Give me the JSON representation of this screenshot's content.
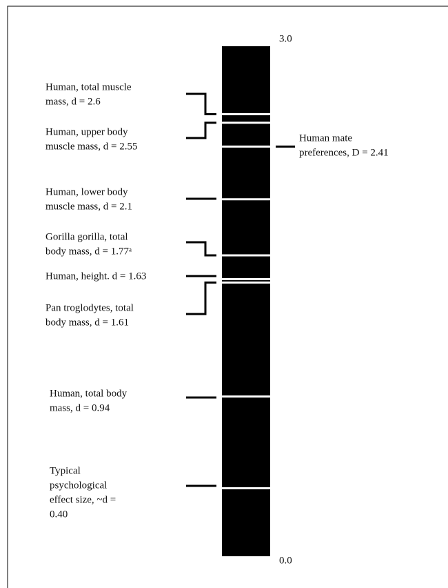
{
  "chart_data": {
    "type": "scale",
    "ylim": [
      0,
      3
    ],
    "yticks": [
      {
        "value": 3,
        "label": "3.0"
      },
      {
        "value": 0,
        "label": "0.0"
      }
    ],
    "color": "#000000",
    "markers": [
      {
        "lines": [
          "Human, total muscle",
          "mass, d = 2.6"
        ],
        "value": 2.6,
        "side": "left"
      },
      {
        "lines": [
          "Human, upper body",
          "muscle mass, d = 2.55"
        ],
        "value": 2.55,
        "side": "left"
      },
      {
        "lines": [
          "Human mate",
          "preferences, D = 2.41"
        ],
        "value": 2.41,
        "side": "right"
      },
      {
        "lines": [
          "Human, lower body",
          "muscle mass, d = 2.1"
        ],
        "value": 2.1,
        "side": "left"
      },
      {
        "lines": [
          "Gorilla gorilla, total",
          "body mass, d = 1.77ᵃ"
        ],
        "value": 1.77,
        "side": "left"
      },
      {
        "lines": [
          "Human, height. d = 1.63"
        ],
        "value": 1.63,
        "side": "left"
      },
      {
        "lines": [
          "Pan troglodytes, total",
          "body mass, d = 1.61"
        ],
        "value": 1.61,
        "side": "left"
      },
      {
        "lines": [
          "Human, total body",
          "mass, d = 0.94"
        ],
        "value": 0.94,
        "side": "left"
      },
      {
        "lines": [
          "Typical",
          "psychological",
          "effect size, ~d =",
          "0.40"
        ],
        "value": 0.4,
        "side": "left"
      }
    ]
  }
}
